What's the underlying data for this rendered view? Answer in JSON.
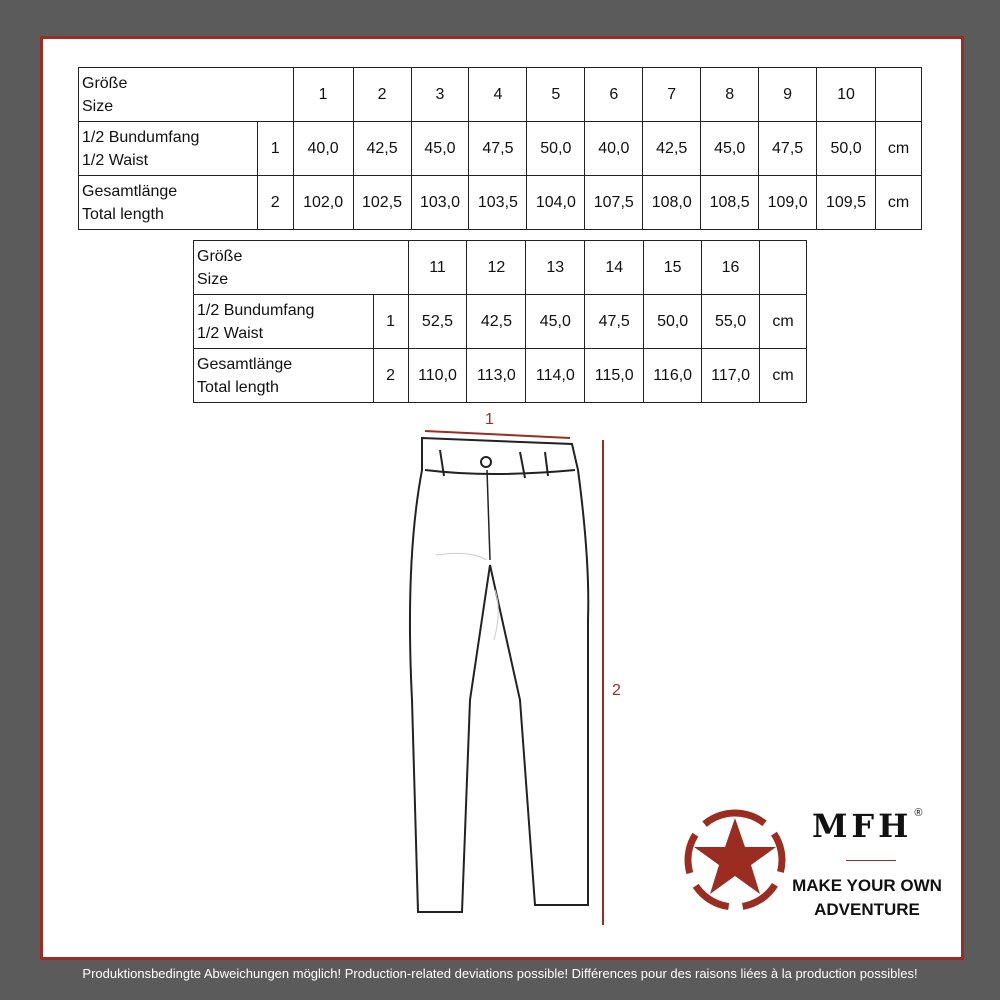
{
  "table1": {
    "size_label": [
      "Größe",
      "Size"
    ],
    "sizes": [
      "1",
      "2",
      "3",
      "4",
      "5",
      "6",
      "7",
      "8",
      "9",
      "10"
    ],
    "rows": [
      {
        "label": [
          "1/2 Bundumfang",
          "1/2 Waist"
        ],
        "index": "1",
        "values": [
          "40,0",
          "42,5",
          "45,0",
          "47,5",
          "50,0",
          "40,0",
          "42,5",
          "45,0",
          "47,5",
          "50,0"
        ],
        "unit": "cm"
      },
      {
        "label": [
          "Gesamtlänge",
          "Total length"
        ],
        "index": "2",
        "values": [
          "102,0",
          "102,5",
          "103,0",
          "103,5",
          "104,0",
          "107,5",
          "108,0",
          "108,5",
          "109,0",
          "109,5"
        ],
        "unit": "cm"
      }
    ]
  },
  "table2": {
    "size_label": [
      "Größe",
      "Size"
    ],
    "sizes": [
      "11",
      "12",
      "13",
      "14",
      "15",
      "16"
    ],
    "rows": [
      {
        "label": [
          "1/2 Bundumfang",
          "1/2 Waist"
        ],
        "index": "1",
        "values": [
          "52,5",
          "42,5",
          "45,0",
          "47,5",
          "50,0",
          "55,0"
        ],
        "unit": "cm"
      },
      {
        "label": [
          "Gesamtlänge",
          "Total length"
        ],
        "index": "2",
        "values": [
          "110,0",
          "113,0",
          "114,0",
          "115,0",
          "116,0",
          "117,0"
        ],
        "unit": "cm"
      }
    ]
  },
  "diagram": {
    "waist_marker": "1",
    "length_marker": "2",
    "accent_color": "#9b2c22"
  },
  "logo": {
    "brand": "MFH",
    "registered": "®",
    "slogan": [
      "MAKE YOUR OWN",
      "ADVENTURE"
    ],
    "icon": "star-in-circle-icon"
  },
  "footer": "Produktionsbedingte Abweichungen möglich! Production-related deviations possible! Différences pour des raisons liées à la production possibles!"
}
